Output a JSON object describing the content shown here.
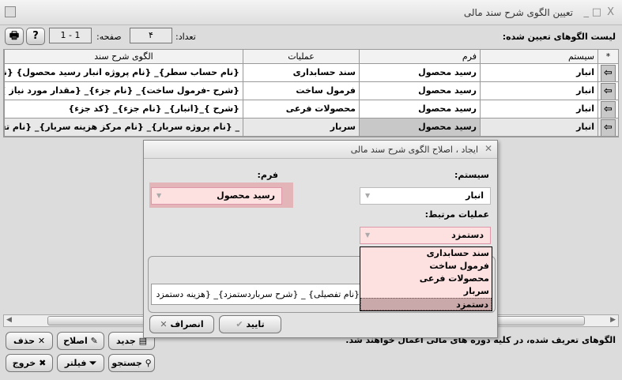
{
  "window": {
    "title": "تعیین الگوی شرح سند مالی",
    "close": "X",
    "maximize": "□",
    "minimize": "_"
  },
  "toolbar": {
    "list_label": "لیست الگوهای تعیین شده:",
    "count_label": "تعداد:",
    "count_value": "۴",
    "page_label": "صفحه:",
    "page_value": "1 - 1",
    "help_icon": "?",
    "print_icon": "🖶"
  },
  "grid": {
    "headers": {
      "marker": "*",
      "system": "سیستم",
      "form": "فرم",
      "operation": "عملیات",
      "pattern": "الگوی شرح سند"
    },
    "rows": [
      {
        "system": "انبار",
        "form": "رسید محصول",
        "operation": "سند حسابداری",
        "pattern": "{نام حساب سطر}_ {نام پروژه انبار رسید محصول} {نام مرکز ه"
      },
      {
        "system": "انبار",
        "form": "رسید محصول",
        "operation": "فرمول ساخت",
        "pattern": "{شرح -فرمول ساخت}_ {نام جزء}_ {مقدار مورد نیاز }_ {کد جز"
      },
      {
        "system": "انبار",
        "form": "رسید محصول",
        "operation": "محصولات فرعی",
        "pattern": "{شرح }_{انبار}_ {نام جزء}_ {کد جزء}"
      },
      {
        "system": "انبار",
        "form": "رسید محصول",
        "operation": "سربار",
        "pattern": "_ {نام پروژه سربار}_ {نام مرکز هزینه سربار}_ {نام تفصیلی"
      }
    ]
  },
  "footer": {
    "note": "الگوهای تعریف شده، در کلیه دوره های مالی اعمال خواهند شد.",
    "buttons": {
      "delete": "حذف",
      "edit": "اصلاح",
      "new": "جدید",
      "exit": "خروج",
      "filter": "فیلتر",
      "search": "جستجو"
    }
  },
  "dialog": {
    "title": "ایجاد ، اصلاح الگوی شرح سند مالی",
    "system_label": "سیستم:",
    "system_value": "انبار",
    "form_label": "فرم:",
    "form_value": "رسید محصول",
    "operation_label": "عملیات مرتبط:",
    "operation_value": "دستمزد",
    "operation_options": [
      "سند حسابداری",
      "فرمول ساخت",
      "محصولات فرعی",
      "سربار",
      "دستمزد"
    ],
    "pattern_value": "{نام تفصیلی} _ {شرح سرباردستمزد}_ {هزینه دستمزد",
    "ok": "تایید",
    "cancel": "انصراف"
  },
  "colors": {
    "highlight": "#fde0e0",
    "selected": "#c9a9a9"
  }
}
